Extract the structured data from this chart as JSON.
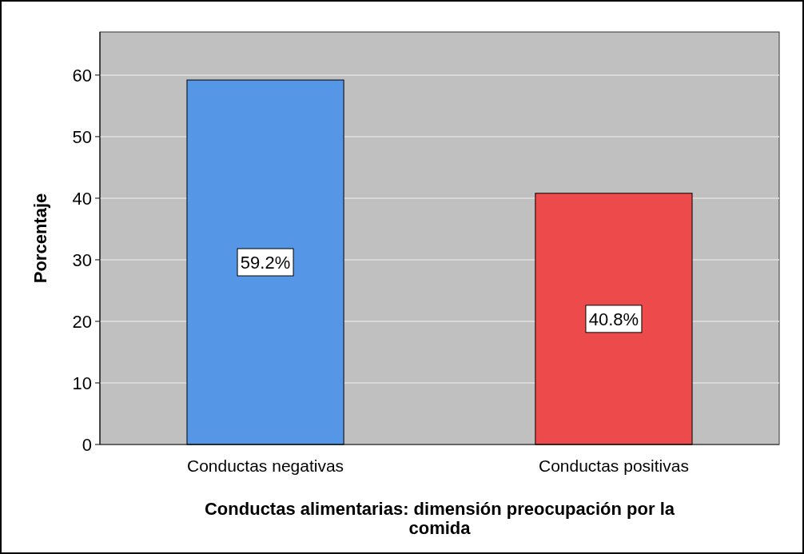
{
  "chart_data": {
    "type": "bar",
    "xlabel": "Conductas alimentarias: dimensión preocupación por la comida",
    "ylabel": "Porcentaje",
    "categories": [
      "Conductas negativas",
      "Conductas positivas"
    ],
    "values": [
      59.2,
      40.8
    ],
    "colors": [
      "#5596e6",
      "#ed4b4b"
    ],
    "value_labels": [
      "59.2%",
      "40.8%"
    ],
    "ylim": [
      0,
      67
    ],
    "yticks": [
      0,
      10,
      20,
      30,
      40,
      50,
      60
    ],
    "grid": "y"
  }
}
